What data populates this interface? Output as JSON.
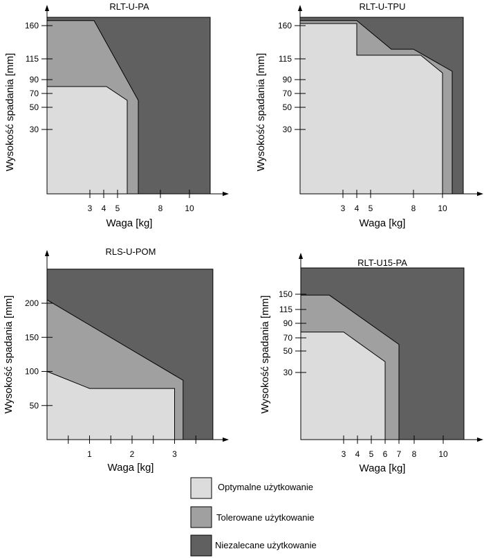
{
  "legend": [
    {
      "label": "Optymalne użytkowanie",
      "color": "#dcdcdc"
    },
    {
      "label": "Tolerowane użytkowanie",
      "color": "#a0a0a0"
    },
    {
      "label": "Niezalecane użytkowanie",
      "color": "#606060"
    }
  ],
  "chart_data": [
    {
      "type": "area",
      "title": "RLT-U-PA",
      "xlabel": "Waga [kg]",
      "ylabel": "Wysokość spadania [mm]",
      "x_ticks": [
        "3",
        "4",
        "5",
        "8",
        "10"
      ],
      "y_ticks": [
        "30",
        "50",
        "70",
        "90",
        "115",
        "160"
      ],
      "regions": {
        "optimal": [
          [
            0,
            80
          ],
          [
            4.2,
            80
          ],
          [
            5.7,
            60
          ],
          [
            5.7,
            0
          ],
          [
            0,
            0
          ]
        ],
        "tolerated": [
          [
            0,
            172
          ],
          [
            3.3,
            172
          ],
          [
            6.5,
            60
          ],
          [
            6.5,
            0
          ],
          [
            0,
            0
          ]
        ],
        "not_recommended": [
          [
            0,
            180
          ],
          [
            11.5,
            180
          ],
          [
            11.5,
            0
          ],
          [
            0,
            0
          ]
        ]
      }
    },
    {
      "type": "area",
      "title": "RLT-U-TPU",
      "xlabel": "Waga [kg]",
      "ylabel": "Wysokość spadania [mm]",
      "x_ticks": [
        "3",
        "4",
        "5",
        "8",
        "10"
      ],
      "y_ticks": [
        "30",
        "50",
        "70",
        "90",
        "115",
        "160"
      ],
      "regions": {
        "optimal": [
          [
            0,
            165
          ],
          [
            4,
            165
          ],
          [
            4,
            120
          ],
          [
            8.5,
            120
          ],
          [
            10,
            98
          ],
          [
            10,
            0
          ],
          [
            0,
            0
          ]
        ],
        "tolerated": [
          [
            0,
            172
          ],
          [
            4,
            172
          ],
          [
            6.5,
            128
          ],
          [
            8,
            128
          ],
          [
            10.7,
            100
          ],
          [
            10.7,
            0
          ],
          [
            0,
            0
          ]
        ],
        "not_recommended": [
          [
            0,
            180
          ],
          [
            11.5,
            180
          ],
          [
            11.5,
            0
          ],
          [
            0,
            0
          ]
        ]
      }
    },
    {
      "type": "area",
      "title": "RLS-U-POM",
      "xlabel": "Waga [kg]",
      "ylabel": "Wysokość spadania [mm]",
      "x_ticks": [
        "1",
        "2",
        "3"
      ],
      "y_ticks": [
        "50",
        "100",
        "150",
        "200"
      ],
      "regions": {
        "optimal": [
          [
            0,
            100
          ],
          [
            1,
            75
          ],
          [
            3,
            75
          ],
          [
            3,
            0
          ],
          [
            0,
            0
          ]
        ],
        "tolerated": [
          [
            0,
            205
          ],
          [
            3.2,
            87
          ],
          [
            3.2,
            0
          ],
          [
            0,
            0
          ]
        ],
        "not_recommended": [
          [
            0,
            250
          ],
          [
            3.9,
            250
          ],
          [
            3.9,
            0
          ],
          [
            0,
            0
          ]
        ]
      }
    },
    {
      "type": "area",
      "title": "RLT-U15-PA",
      "xlabel": "Waga [kg]",
      "ylabel": "Wysokość spadania [mm]",
      "x_ticks": [
        "3",
        "4",
        "5",
        "6",
        "7",
        "8",
        "10"
      ],
      "y_ticks": [
        "30",
        "50",
        "70",
        "90",
        "115",
        "150"
      ],
      "regions": {
        "optimal": [
          [
            0,
            78
          ],
          [
            3,
            78
          ],
          [
            6,
            40
          ],
          [
            6,
            0
          ],
          [
            0,
            0
          ]
        ],
        "tolerated": [
          [
            0,
            148
          ],
          [
            2,
            148
          ],
          [
            7,
            60
          ],
          [
            7,
            0
          ],
          [
            0,
            0
          ]
        ],
        "not_recommended": [
          [
            0,
            180
          ],
          [
            11.5,
            180
          ],
          [
            11.5,
            0
          ],
          [
            0,
            0
          ]
        ]
      }
    }
  ]
}
